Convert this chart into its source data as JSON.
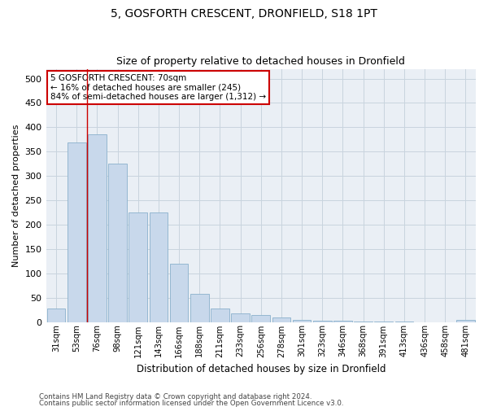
{
  "title": "5, GOSFORTH CRESCENT, DRONFIELD, S18 1PT",
  "subtitle": "Size of property relative to detached houses in Dronfield",
  "xlabel": "Distribution of detached houses by size in Dronfield",
  "ylabel": "Number of detached properties",
  "footer_line1": "Contains HM Land Registry data © Crown copyright and database right 2024.",
  "footer_line2": "Contains public sector information licensed under the Open Government Licence v3.0.",
  "bin_labels": [
    "31sqm",
    "53sqm",
    "76sqm",
    "98sqm",
    "121sqm",
    "143sqm",
    "166sqm",
    "188sqm",
    "211sqm",
    "233sqm",
    "256sqm",
    "278sqm",
    "301sqm",
    "323sqm",
    "346sqm",
    "368sqm",
    "391sqm",
    "413sqm",
    "436sqm",
    "458sqm",
    "481sqm"
  ],
  "bar_values": [
    28,
    368,
    385,
    325,
    225,
    225,
    120,
    58,
    28,
    18,
    15,
    10,
    5,
    3,
    3,
    1,
    1,
    1,
    0,
    0,
    5
  ],
  "bar_color": "#c8d8eb",
  "bar_edgecolor": "#8ab0cc",
  "grid_color": "#c8d4de",
  "bg_color": "#eaeff5",
  "red_line_x": 1.5,
  "annotation_text": "5 GOSFORTH CRESCENT: 70sqm\n← 16% of detached houses are smaller (245)\n84% of semi-detached houses are larger (1,312) →",
  "annotation_box_color": "#ffffff",
  "annotation_box_edgecolor": "#cc0000",
  "ylim": [
    0,
    520
  ],
  "yticks": [
    0,
    50,
    100,
    150,
    200,
    250,
    300,
    350,
    400,
    450,
    500
  ]
}
